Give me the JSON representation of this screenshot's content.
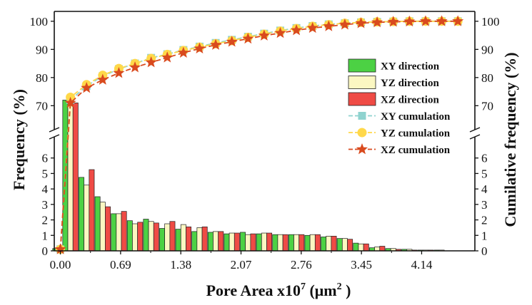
{
  "chart_data": {
    "type": "bar",
    "xlabel": "Pore Area x10",
    "xlabel_sup": "7",
    "xlabel_unit_open": " (μm",
    "xlabel_unit_sup": "2",
    "xlabel_unit_close": " )",
    "ylabel_left": "Frequency (%)",
    "ylabel_right": "Cumilative frequency (%)",
    "xlim": [
      -0.07,
      4.75
    ],
    "x_ticks": [
      0.0,
      0.69,
      1.38,
      2.07,
      2.76,
      3.45,
      4.14
    ],
    "x_tick_labels": [
      "0.00",
      "0.69",
      "1.38",
      "2.07",
      "2.76",
      "3.45",
      "4.14"
    ],
    "y_lower_range": [
      0,
      7
    ],
    "y_lower_ticks": [
      "0",
      "1",
      "2",
      "3",
      "4",
      "5",
      "6"
    ],
    "y_upper_range": [
      63.5,
      103.5
    ],
    "y_upper_ticks": [
      "70",
      "80",
      "90",
      "100"
    ],
    "axis_break": true,
    "bin_centers": [
      0.0,
      0.115,
      0.3,
      0.485,
      0.67,
      0.855,
      1.04,
      1.225,
      1.41,
      1.595,
      1.78,
      1.965,
      2.15,
      2.335,
      2.52,
      2.705,
      2.89,
      3.075,
      3.26,
      3.445,
      3.63,
      3.815,
      4.0,
      4.185,
      4.37,
      4.555
    ],
    "series": [
      {
        "name": "XY direction",
        "kind": "bar",
        "color": "#4cd144",
        "values": [
          0.15,
          72.0,
          4.75,
          3.5,
          2.4,
          1.95,
          2.05,
          1.45,
          1.4,
          1.25,
          1.2,
          1.1,
          1.2,
          1.1,
          1.05,
          1.05,
          1.0,
          0.9,
          0.8,
          0.5,
          0.2,
          0.15,
          0.1,
          0.05,
          0.05,
          0.0
        ]
      },
      {
        "name": "YZ direction",
        "kind": "bar",
        "color": "#fbf7c2",
        "values": [
          0.1,
          71.5,
          4.25,
          3.15,
          2.4,
          1.75,
          1.9,
          1.75,
          1.7,
          1.5,
          1.25,
          1.15,
          1.05,
          1.15,
          1.05,
          1.05,
          1.05,
          0.95,
          0.8,
          0.45,
          0.25,
          0.15,
          0.1,
          0.05,
          0.05,
          0.0
        ]
      },
      {
        "name": "XZ direction",
        "kind": "bar",
        "color": "#ef4b45",
        "values": [
          0.15,
          71.0,
          5.25,
          2.85,
          2.55,
          1.85,
          1.8,
          1.9,
          1.55,
          1.55,
          1.25,
          1.15,
          1.1,
          1.15,
          1.05,
          1.05,
          1.05,
          0.95,
          0.75,
          0.45,
          0.3,
          0.1,
          0.05,
          0.05,
          0.0,
          0.0
        ]
      },
      {
        "name": "XY cumulation",
        "kind": "line",
        "color": "#8fd3cf",
        "marker": "square",
        "x": [
          0.0,
          0.115,
          0.3,
          0.485,
          0.67,
          0.855,
          1.04,
          1.225,
          1.41,
          1.595,
          1.78,
          1.965,
          2.15,
          2.335,
          2.52,
          2.705,
          2.89,
          3.075,
          3.26,
          3.445,
          3.63,
          3.815,
          4.0,
          4.185,
          4.37,
          4.555
        ],
        "values": [
          0.1,
          72.0,
          77.0,
          80.5,
          83.0,
          85.0,
          87.0,
          88.3,
          89.8,
          91.0,
          92.3,
          93.4,
          94.5,
          95.6,
          96.7,
          97.6,
          98.3,
          98.9,
          99.3,
          99.6,
          99.8,
          99.9,
          100.0,
          100.0,
          100.0,
          100.0
        ]
      },
      {
        "name": "YZ cumulation",
        "kind": "line",
        "color": "#ffd84a",
        "marker": "circle",
        "x": [
          0.0,
          0.115,
          0.3,
          0.485,
          0.67,
          0.855,
          1.04,
          1.225,
          1.41,
          1.595,
          1.78,
          1.965,
          2.15,
          2.335,
          2.52,
          2.705,
          2.89,
          3.075,
          3.26,
          3.445,
          3.63,
          3.815,
          4.0,
          4.185,
          4.37,
          4.555
        ],
        "values": [
          0.1,
          73.0,
          77.5,
          80.8,
          83.2,
          85.0,
          86.8,
          88.2,
          89.6,
          90.8,
          92.0,
          93.1,
          94.3,
          95.4,
          96.5,
          97.4,
          98.2,
          98.8,
          99.3,
          99.6,
          99.8,
          99.9,
          100.0,
          100.0,
          100.0,
          100.0
        ]
      },
      {
        "name": "XZ cumulation",
        "kind": "line",
        "color": "#d94a1e",
        "marker": "star",
        "x": [
          0.0,
          0.115,
          0.3,
          0.485,
          0.67,
          0.855,
          1.04,
          1.225,
          1.41,
          1.595,
          1.78,
          1.965,
          2.15,
          2.335,
          2.52,
          2.705,
          2.89,
          3.075,
          3.26,
          3.445,
          3.63,
          3.815,
          4.0,
          4.185,
          4.37,
          4.555
        ],
        "values": [
          0.1,
          71.0,
          76.3,
          79.2,
          81.6,
          83.6,
          85.4,
          87.1,
          88.8,
          90.3,
          91.6,
          92.7,
          93.8,
          94.9,
          95.8,
          96.8,
          97.6,
          98.2,
          98.8,
          99.3,
          99.6,
          99.8,
          99.9,
          100.0,
          100.0,
          100.0
        ]
      }
    ],
    "legend_position": "right, inside plot"
  }
}
